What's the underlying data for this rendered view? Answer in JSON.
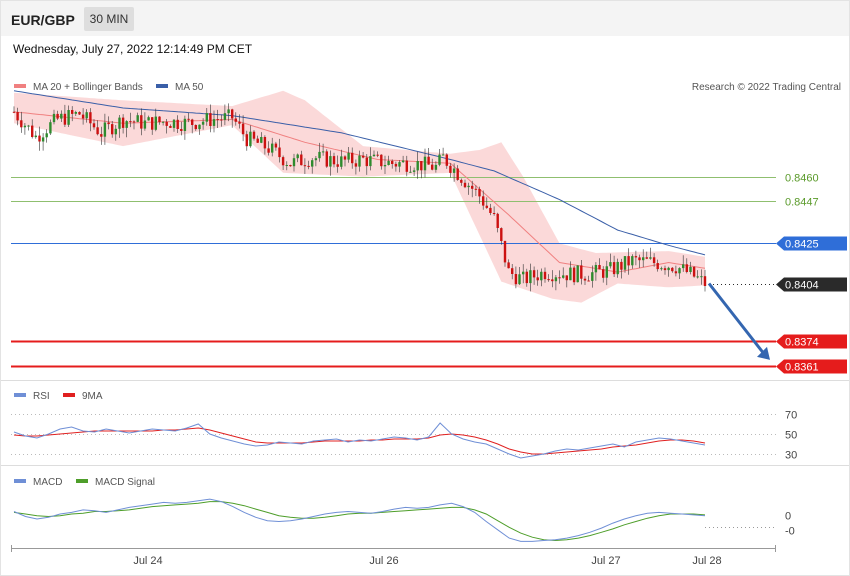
{
  "header": {
    "symbol": "EUR/GBP",
    "timeframe": "30 MIN",
    "datetime": "Wednesday, July 27, 2022 12:14:49 PM CET"
  },
  "colors": {
    "bb_band": "#fbd5d5",
    "ma20": "#f08080",
    "ma50": "#3a5fa8",
    "candle_up": "#2e8b2e",
    "candle_down": "#cc1111",
    "resistance": "#8fbf6f",
    "pivot": "#2f6ed8",
    "support": "#e51c1c",
    "current": "#2a2a2a",
    "arrow": "#3466b0",
    "rsi": "#6f8fd6",
    "rsi_ma": "#e02020",
    "macd": "#6f8fd6",
    "macd_signal": "#4e9e2a"
  },
  "legend": {
    "ma20_label": "MA 20 + Bollinger Bands",
    "ma50_label": "MA 50",
    "copyright": "Research © 2022 Trading Central",
    "rsi_label": "RSI",
    "rsi_ma_label": "9MA",
    "macd_label": "MACD",
    "macd_signal_label": "MACD Signal"
  },
  "chart_data": [
    {
      "type": "candlestick",
      "pane": "price",
      "ylim": [
        0.8355,
        0.8518
      ],
      "x_tick_labels": [
        "Jul 24",
        "Jul 26",
        "Jul 27",
        "Jul 28"
      ],
      "series_legend": [
        "MA 20 + Bollinger Bands",
        "MA 50"
      ],
      "levels": [
        {
          "label": "0.8460",
          "value": 0.846,
          "kind": "resistance"
        },
        {
          "label": "0.8447",
          "value": 0.8447,
          "kind": "resistance"
        },
        {
          "label": "0.8425",
          "value": 0.8425,
          "kind": "pivot"
        },
        {
          "label": "0.8404",
          "value": 0.8404,
          "kind": "current"
        },
        {
          "label": "0.8374",
          "value": 0.8374,
          "kind": "support"
        },
        {
          "label": "0.8361",
          "value": 0.8361,
          "kind": "support"
        }
      ],
      "close_path": [
        [
          0,
          0.8494
        ],
        [
          6,
          0.8481
        ],
        [
          12,
          0.849
        ],
        [
          18,
          0.8493
        ],
        [
          24,
          0.8483
        ],
        [
          30,
          0.849
        ],
        [
          36,
          0.8488
        ],
        [
          42,
          0.8489
        ],
        [
          48,
          0.8488
        ],
        [
          54,
          0.849
        ],
        [
          60,
          0.8491
        ],
        [
          64,
          0.848
        ],
        [
          70,
          0.8475
        ],
        [
          76,
          0.8467
        ],
        [
          82,
          0.847
        ],
        [
          90,
          0.8468
        ],
        [
          96,
          0.8469
        ],
        [
          104,
          0.8467
        ],
        [
          110,
          0.8467
        ],
        [
          116,
          0.8465
        ],
        [
          118,
          0.847
        ],
        [
          122,
          0.8462
        ],
        [
          128,
          0.845
        ],
        [
          132,
          0.8438
        ],
        [
          136,
          0.841
        ],
        [
          140,
          0.8406
        ],
        [
          146,
          0.841
        ],
        [
          152,
          0.8409
        ],
        [
          158,
          0.8409
        ],
        [
          164,
          0.8411
        ],
        [
          170,
          0.8416
        ],
        [
          176,
          0.8415
        ],
        [
          182,
          0.8413
        ],
        [
          186,
          0.8409
        ],
        [
          190,
          0.8404
        ]
      ],
      "ma50_path": [
        [
          0,
          0.8505
        ],
        [
          30,
          0.8496
        ],
        [
          60,
          0.8492
        ],
        [
          90,
          0.8483
        ],
        [
          120,
          0.8469
        ],
        [
          132,
          0.8463
        ],
        [
          150,
          0.8448
        ],
        [
          166,
          0.8432
        ],
        [
          180,
          0.8424
        ],
        [
          190,
          0.8419
        ]
      ],
      "ma20_path": [
        [
          0,
          0.8494
        ],
        [
          30,
          0.8488
        ],
        [
          60,
          0.849
        ],
        [
          80,
          0.8478
        ],
        [
          100,
          0.8469
        ],
        [
          120,
          0.8467
        ],
        [
          136,
          0.844
        ],
        [
          150,
          0.8415
        ],
        [
          166,
          0.841
        ],
        [
          180,
          0.8415
        ],
        [
          190,
          0.8412
        ]
      ],
      "bb_upper": [
        [
          0,
          0.8504
        ],
        [
          30,
          0.85
        ],
        [
          60,
          0.8497
        ],
        [
          74,
          0.8505
        ],
        [
          80,
          0.85
        ],
        [
          96,
          0.8476
        ],
        [
          120,
          0.8472
        ],
        [
          128,
          0.8474
        ],
        [
          134,
          0.8478
        ],
        [
          140,
          0.846
        ],
        [
          150,
          0.8425
        ],
        [
          160,
          0.842
        ],
        [
          180,
          0.8421
        ],
        [
          190,
          0.8418
        ]
      ],
      "bb_lower": [
        [
          0,
          0.8488
        ],
        [
          30,
          0.8476
        ],
        [
          60,
          0.8487
        ],
        [
          74,
          0.8462
        ],
        [
          96,
          0.846
        ],
        [
          120,
          0.8462
        ],
        [
          134,
          0.8405
        ],
        [
          148,
          0.8396
        ],
        [
          156,
          0.8394
        ],
        [
          166,
          0.8404
        ],
        [
          180,
          0.8402
        ],
        [
          190,
          0.8403
        ]
      ],
      "projection": {
        "from": 0.8404,
        "to": 0.8364
      }
    },
    {
      "type": "line",
      "pane": "rsi",
      "ylim": [
        20,
        80
      ],
      "y_ticks": [
        70,
        50,
        30
      ],
      "y_tick_labels": [
        "70",
        "50",
        "30"
      ],
      "series": [
        {
          "name": "RSI",
          "values": [
            52,
            48,
            46,
            50,
            55,
            57,
            53,
            52,
            55,
            53,
            51,
            53,
            55,
            54,
            53,
            56,
            60,
            50,
            46,
            43,
            40,
            38,
            39,
            42,
            41,
            40,
            43,
            44,
            45,
            42,
            44,
            43,
            45,
            47,
            46,
            44,
            47,
            61,
            50,
            45,
            42,
            40,
            35,
            30,
            26,
            28,
            30,
            33,
            35,
            34,
            36,
            38,
            40,
            37,
            42,
            44,
            46,
            45,
            43,
            41,
            39
          ]
        },
        {
          "name": "9MA",
          "values": [
            49,
            48,
            48,
            49,
            50,
            51,
            52,
            53,
            53,
            53,
            53,
            53,
            53,
            54,
            54,
            55,
            56,
            54,
            51,
            48,
            45,
            42,
            41,
            41,
            41,
            41,
            42,
            43,
            43,
            43,
            43,
            44,
            44,
            45,
            45,
            45,
            46,
            49,
            50,
            49,
            47,
            44,
            40,
            35,
            32,
            30,
            30,
            31,
            32,
            33,
            34,
            35,
            37,
            38,
            39,
            41,
            43,
            44,
            44,
            43,
            41
          ]
        }
      ]
    },
    {
      "type": "line",
      "pane": "macd",
      "ylim": [
        -0.0004,
        0.0003
      ],
      "y_ticks": [
        0,
        -0.00018
      ],
      "y_tick_labels": [
        "0",
        "-0"
      ],
      "series": [
        {
          "name": "MACD",
          "values": [
            4e-05,
            -2e-05,
            -5e-05,
            -3e-05,
            1e-05,
            3e-05,
            6e-05,
            5e-05,
            3e-05,
            6e-05,
            9e-05,
            0.00011,
            0.00013,
            0.00015,
            0.00014,
            0.00015,
            0.00017,
            0.00019,
            0.00016,
            0.0001,
            3e-05,
            -3e-05,
            -7e-05,
            -8e-05,
            -7e-05,
            -5e-05,
            -2e-05,
            1e-05,
            3e-05,
            4e-05,
            3e-05,
            2e-05,
            4e-05,
            7e-05,
            9e-05,
            8e-05,
            9e-05,
            0.00012,
            0.00014,
            0.0001,
            3e-05,
            -8e-05,
            -0.00018,
            -0.00028,
            -0.00032,
            -0.00032,
            -0.00031,
            -0.0003,
            -0.00028,
            -0.00025,
            -0.00021,
            -0.00016,
            -0.0001,
            -5e-05,
            -1e-05,
            2e-05,
            3e-05,
            2e-05,
            1e-05,
            0.0,
            -1e-05
          ]
        },
        {
          "name": "MACD Signal",
          "values": [
            3e-05,
            1e-05,
            -1e-05,
            -2e-05,
            -1e-05,
            1e-05,
            2e-05,
            4e-05,
            4e-05,
            5e-05,
            6e-05,
            8e-05,
            0.0001,
            0.00011,
            0.00012,
            0.00013,
            0.00014,
            0.00016,
            0.00016,
            0.00014,
            0.00011,
            7e-05,
            3e-05,
            -1e-05,
            -3e-05,
            -4e-05,
            -4e-05,
            -3e-05,
            -1e-05,
            1e-05,
            2e-05,
            2e-05,
            3e-05,
            4e-05,
            5e-05,
            6e-05,
            7e-05,
            8e-05,
            9e-05,
            9e-05,
            6e-05,
            1e-05,
            -7e-05,
            -0.00015,
            -0.00022,
            -0.00027,
            -0.0003,
            -0.00031,
            -0.0003,
            -0.00028,
            -0.00025,
            -0.00021,
            -0.00017,
            -0.00012,
            -8e-05,
            -4e-05,
            -1e-05,
            1e-05,
            1e-05,
            1e-05,
            0.0
          ]
        }
      ]
    }
  ]
}
